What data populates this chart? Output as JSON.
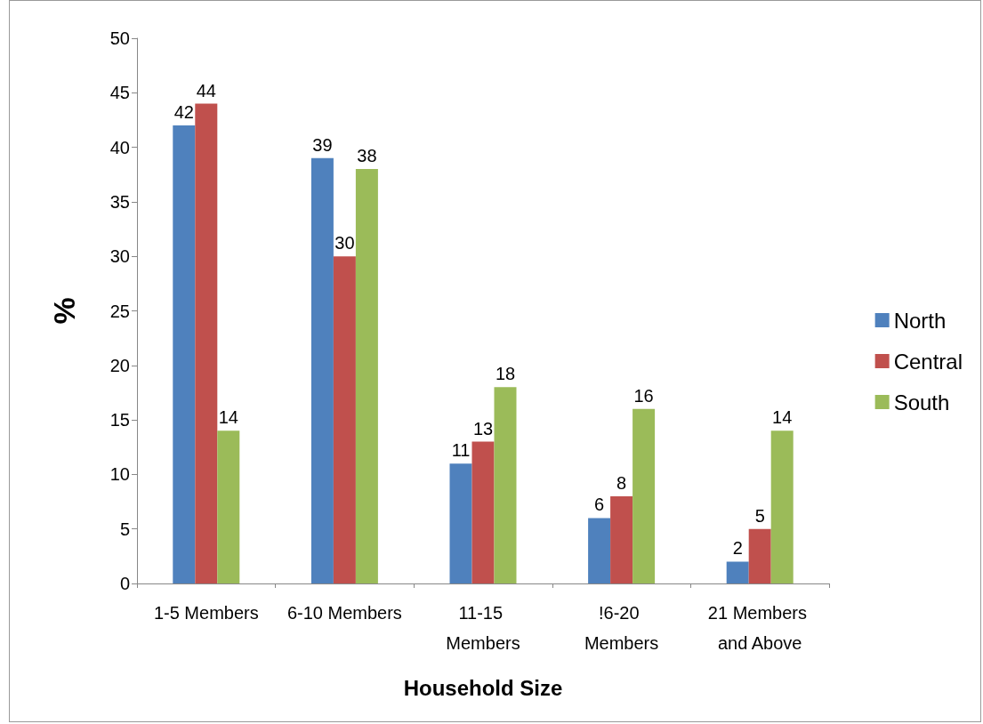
{
  "chart_data": {
    "type": "bar",
    "xlabel": "Household Size",
    "ylabel": "%",
    "categories": [
      "1-5 Members",
      "6-10 Members",
      "11-15 Members",
      "!6-20 Members",
      "21 Members and Above"
    ],
    "series": [
      {
        "name": "North",
        "color": "#4f81bd",
        "values": [
          42,
          39,
          11,
          6,
          2
        ]
      },
      {
        "name": "Central",
        "color": "#c0504d",
        "values": [
          44,
          30,
          13,
          8,
          5
        ]
      },
      {
        "name": "South",
        "color": "#9bbb59",
        "values": [
          14,
          38,
          18,
          16,
          14
        ]
      }
    ],
    "ylim": [
      0,
      50
    ],
    "yticks": [
      0,
      5,
      10,
      15,
      20,
      25,
      30,
      35,
      40,
      45,
      50
    ],
    "grid": false,
    "legend": "right",
    "data_labels": true
  }
}
